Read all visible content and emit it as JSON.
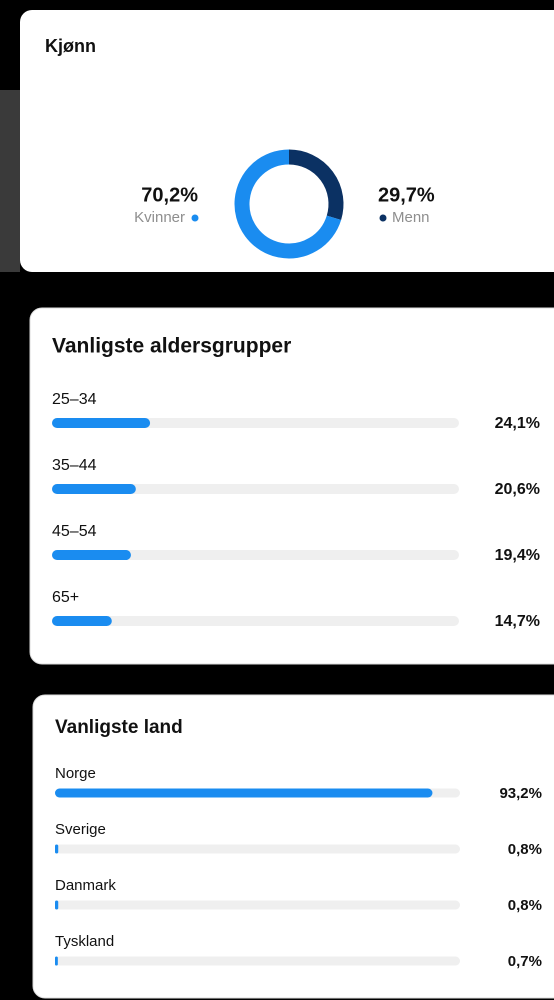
{
  "chart_data": [
    {
      "type": "pie",
      "title": "Kjønn",
      "hole": true,
      "series": [
        {
          "name": "Menn",
          "color": "#0b3163",
          "values": [
            29.7
          ],
          "value_labels": [
            "29,7%"
          ]
        },
        {
          "name": "Kvinner",
          "color": "#1a8cf0",
          "values": [
            70.2
          ],
          "value_labels": [
            "70,2%"
          ]
        }
      ]
    },
    {
      "type": "bar",
      "orientation": "horizontal",
      "title": "Vanligste aldersgrupper",
      "categories": [
        "25–34",
        "35–44",
        "45–54",
        "65+"
      ],
      "values": [
        24.1,
        20.6,
        19.4,
        14.7
      ],
      "value_labels": [
        "24,1%",
        "20,6%",
        "19,4%",
        "14,7%"
      ],
      "color": "#1a8cf0",
      "xlim": [
        0,
        100
      ]
    },
    {
      "type": "bar",
      "orientation": "horizontal",
      "title": "Vanligste land",
      "categories": [
        "Norge",
        "Sverige",
        "Danmark",
        "Tyskland"
      ],
      "values": [
        93.2,
        0.8,
        0.8,
        0.7
      ],
      "value_labels": [
        "93,2%",
        "0,8%",
        "0,8%",
        "0,7%"
      ],
      "color": "#1a8cf0",
      "xlim": [
        0,
        100
      ]
    }
  ]
}
